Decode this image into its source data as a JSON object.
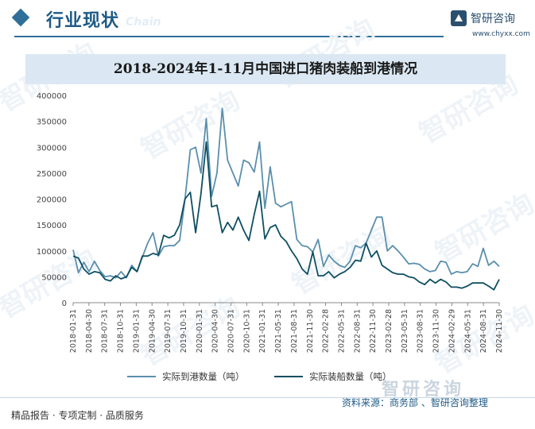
{
  "header": {
    "section_title": "行业现状",
    "section_ghost": "Chain",
    "logo_name": "智研咨询",
    "logo_url": "www.chyxx.com"
  },
  "watermark_text": "智研咨询",
  "footer": {
    "left_text": "精品报告 · 专项定制 · 品质服务",
    "source": "资料来源：商务部 、智研咨询整理",
    "logo_text": "智研咨询"
  },
  "colors": {
    "accent": "#2f6f9a",
    "series_arrival": "#5b8fad",
    "series_shipment": "#0d4f62",
    "title_band": "#dbe8f3"
  },
  "chart_data": {
    "type": "line",
    "title": "2018-2024年1-11月中国进口猪肉装船到港情况",
    "ylim": [
      0,
      400000
    ],
    "yticks": [
      0,
      50000,
      100000,
      150000,
      200000,
      250000,
      300000,
      350000,
      400000
    ],
    "grid": false,
    "legend_position": "bottom",
    "xtick_labels": [
      "2018-01-31",
      "2018-04-30",
      "2018-07-31",
      "2018-10-31",
      "2019-01-31",
      "2019-04-30",
      "2019-07-31",
      "2019-10-31",
      "2020-01-31",
      "2020-04-30",
      "2020-07-31",
      "2020-10-31",
      "2021-01-31",
      "2021-05-31",
      "2021-08-31",
      "2021-11-30",
      "2022-02-28",
      "2022-05-31",
      "2022-08-31",
      "2022-11-30",
      "2023-02-28",
      "2023-05-31",
      "2023-08-31",
      "2023-11-30",
      "2024-02-29",
      "2024-05-31",
      "2024-08-31",
      "2024-11-30"
    ],
    "series": [
      {
        "name": "实际到港数量（吨）",
        "values": [
          102000,
          58000,
          78000,
          60000,
          80000,
          62000,
          50000,
          52000,
          48000,
          60000,
          48000,
          72000,
          60000,
          88000,
          115000,
          135000,
          90000,
          108000,
          110000,
          110000,
          120000,
          200000,
          295000,
          300000,
          250000,
          355000,
          205000,
          250000,
          375000,
          275000,
          250000,
          225000,
          275000,
          270000,
          252000,
          310000,
          182000,
          262000,
          192000,
          185000,
          190000,
          195000,
          122000,
          110000,
          108000,
          98000,
          122000,
          70000,
          92000,
          80000,
          72000,
          68000,
          80000,
          110000,
          106000,
          115000,
          140000,
          165000,
          165000,
          100000,
          110000,
          100000,
          88000,
          75000,
          76000,
          74000,
          65000,
          60000,
          62000,
          80000,
          78000,
          55000,
          60000,
          58000,
          60000,
          75000,
          70000,
          105000,
          72000,
          80000,
          70000
        ]
      },
      {
        "name": "实际装船数量（吨）",
        "values": [
          90000,
          86000,
          65000,
          55000,
          60000,
          58000,
          45000,
          42000,
          52000,
          46000,
          50000,
          68000,
          60000,
          90000,
          90000,
          95000,
          92000,
          130000,
          125000,
          130000,
          150000,
          200000,
          213000,
          135000,
          210000,
          310000,
          185000,
          188000,
          135000,
          155000,
          140000,
          165000,
          140000,
          120000,
          170000,
          215000,
          123000,
          145000,
          150000,
          128000,
          118000,
          100000,
          85000,
          65000,
          55000,
          98000,
          52000,
          52000,
          60000,
          48000,
          55000,
          60000,
          68000,
          82000,
          80000,
          115000,
          88000,
          100000,
          72000,
          65000,
          58000,
          55000,
          55000,
          50000,
          48000,
          40000,
          35000,
          45000,
          38000,
          45000,
          40000,
          30000,
          30000,
          28000,
          32000,
          38000,
          38000,
          38000,
          32000,
          25000,
          45000
        ]
      }
    ]
  }
}
